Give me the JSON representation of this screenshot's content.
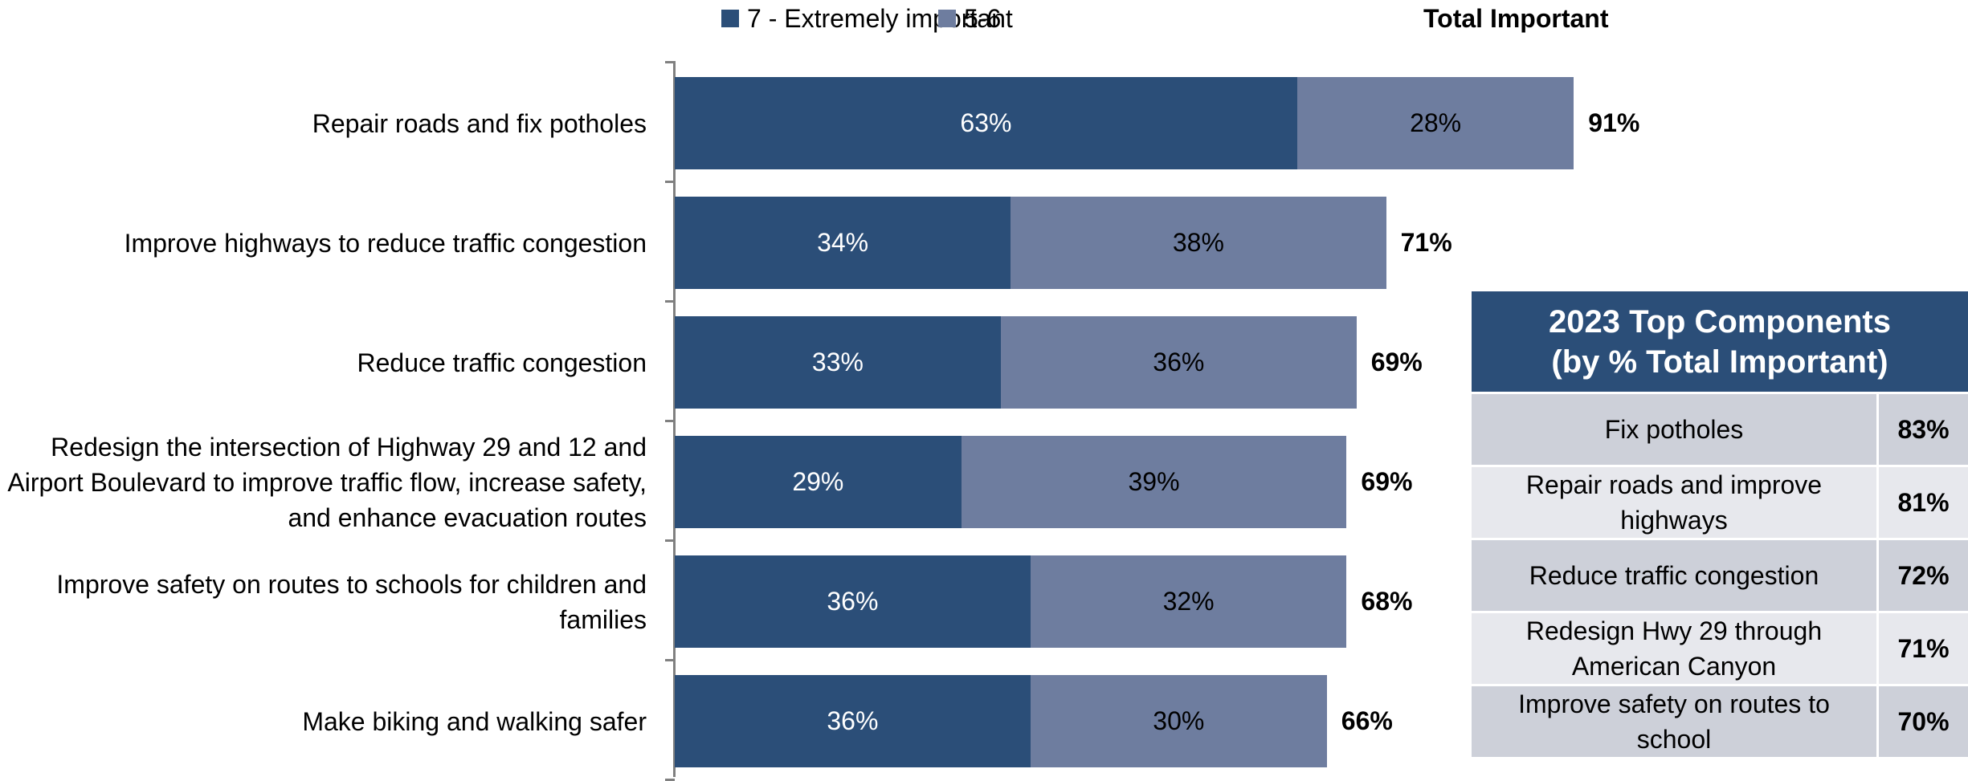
{
  "chart_data": {
    "type": "bar",
    "orientation": "horizontal",
    "stacked": true,
    "categories": [
      "Repair roads and fix potholes",
      "Improve highways to reduce traffic congestion",
      "Reduce traffic congestion",
      "Redesign the intersection of Highway 29 and 12 and Airport Boulevard to improve traffic flow, increase safety, and enhance evacuation routes",
      "Improve safety on routes to schools for children and families",
      "Make biking and walking safer"
    ],
    "series": [
      {
        "name": "7 - Extremely important",
        "values": [
          63,
          34,
          33,
          29,
          36,
          36
        ],
        "labels": [
          "63%",
          "34%",
          "33%",
          "29%",
          "36%",
          "36%"
        ],
        "color": "#2b4e78"
      },
      {
        "name": "5-6",
        "values": [
          28,
          38,
          36,
          39,
          32,
          30
        ],
        "labels": [
          "28%",
          "38%",
          "36%",
          "39%",
          "32%",
          "30%"
        ],
        "color": "#6e7d9f"
      }
    ],
    "totals_header": "Total Important",
    "totals": [
      "91%",
      "71%",
      "69%",
      "69%",
      "68%",
      "66%"
    ],
    "xlim": [
      0,
      100
    ],
    "legend_position": "top",
    "grid": false
  },
  "side_table": {
    "title_line1": "2023 Top Components",
    "title_line2": "(by % Total Important)",
    "header_color": "#2b4e78",
    "rows": [
      {
        "label": "Fix potholes",
        "value": "83%"
      },
      {
        "label": "Repair roads and improve highways",
        "value": "81%"
      },
      {
        "label": "Reduce traffic congestion",
        "value": "72%"
      },
      {
        "label": "Redesign Hwy 29 through American Canyon",
        "value": "71%"
      },
      {
        "label": "Improve safety on routes to school",
        "value": "70%"
      }
    ]
  }
}
